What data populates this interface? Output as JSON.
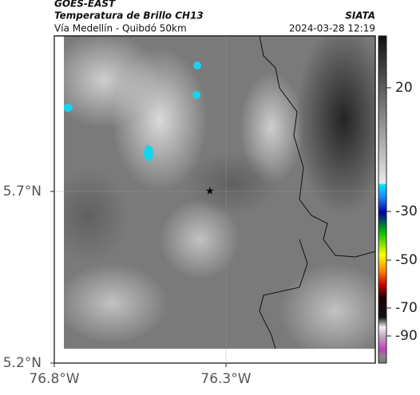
{
  "header": {
    "satellite": "GOES-EAST",
    "product": "Temperatura de Brillo CH13",
    "source": "SIATA",
    "location": "Vía Medellín - Quibdó 50km",
    "datetime": "2024-03-28 12:19"
  },
  "map": {
    "xlim": [
      -76.8,
      -75.865
    ],
    "ylim": [
      5.2,
      6.153
    ],
    "xticks": [
      {
        "value": -76.8,
        "label": "76.8°W"
      },
      {
        "value": -76.3,
        "label": "76.3°W"
      }
    ],
    "yticks": [
      {
        "value": 5.7,
        "label": "5.7°N"
      },
      {
        "value": 5.2,
        "label": "5.2°N"
      }
    ],
    "marker": {
      "lon": -76.347,
      "lat": 5.7
    }
  },
  "colorbar": {
    "ticks": [
      20,
      -30,
      -50,
      -70,
      -90
    ]
  }
}
